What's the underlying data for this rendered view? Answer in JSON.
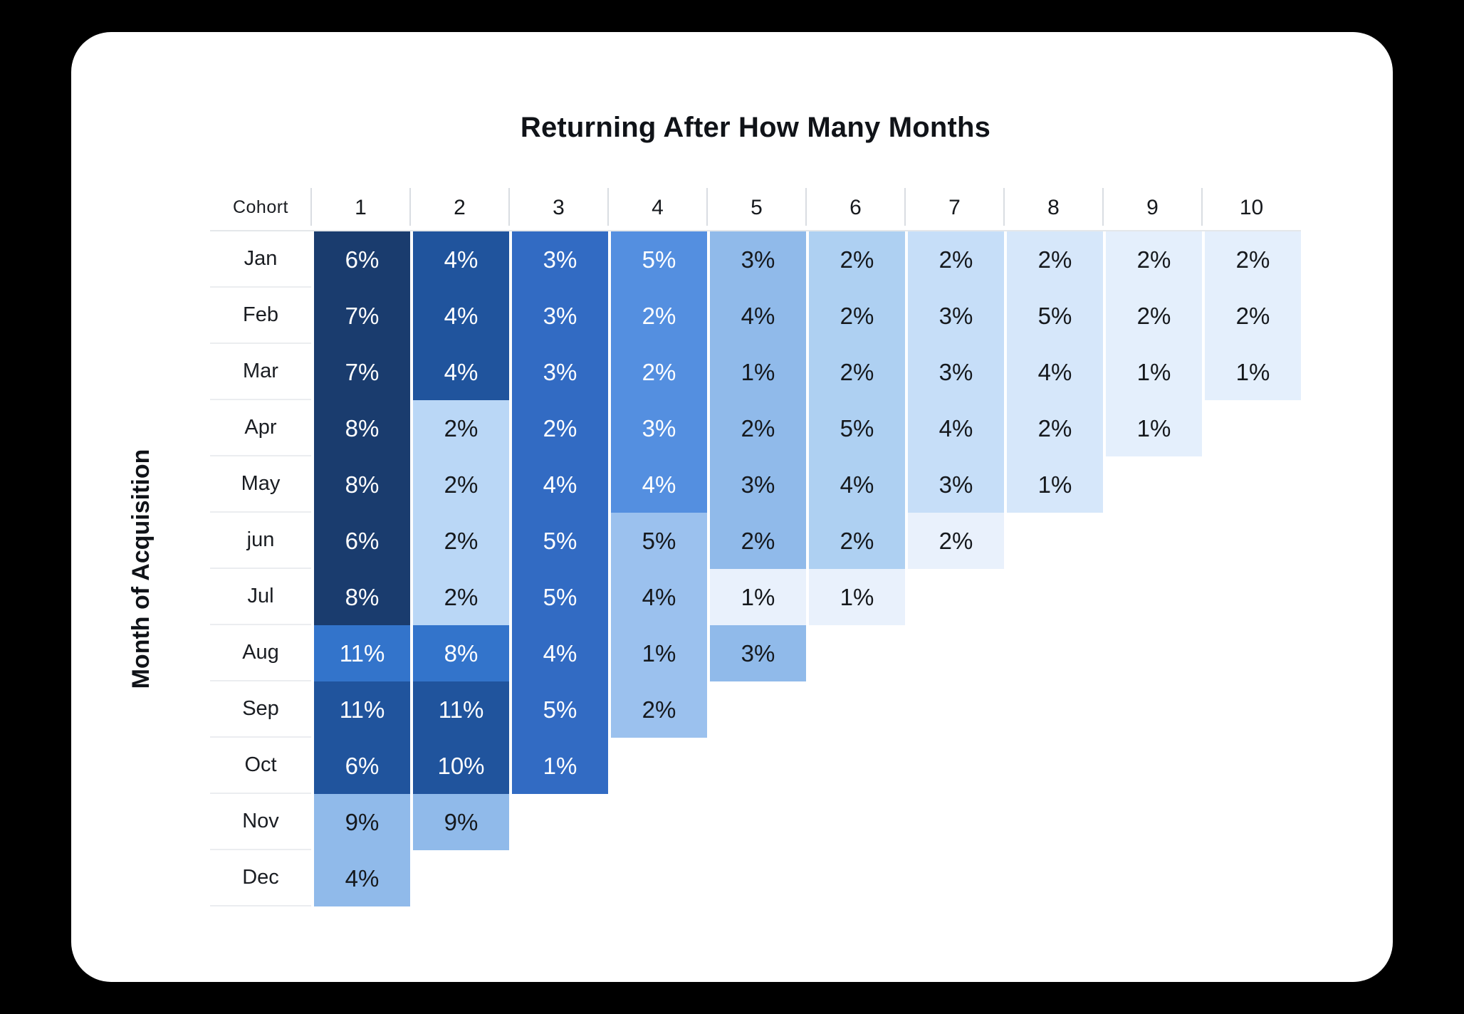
{
  "page": {
    "background": "#000000",
    "card_background": "#ffffff"
  },
  "chart_data": {
    "type": "heatmap",
    "title": "Returning After How Many Months",
    "ylabel": "Month of Acquisition",
    "corner_label": "Cohort",
    "unit": "%",
    "columns": [
      "1",
      "2",
      "3",
      "4",
      "5",
      "6",
      "7",
      "8",
      "9",
      "10"
    ],
    "rows": [
      "Jan",
      "Feb",
      "Mar",
      "Apr",
      "May",
      "jun",
      "Jul",
      "Aug",
      "Sep",
      "Oct",
      "Nov",
      "Dec"
    ],
    "values_pct": [
      [
        6,
        4,
        3,
        5,
        3,
        2,
        2,
        2,
        2,
        2
      ],
      [
        7,
        4,
        3,
        2,
        4,
        2,
        3,
        5,
        2,
        2
      ],
      [
        7,
        4,
        3,
        2,
        1,
        2,
        3,
        4,
        1,
        1
      ],
      [
        8,
        2,
        2,
        3,
        2,
        5,
        4,
        2,
        1
      ],
      [
        8,
        2,
        4,
        4,
        3,
        4,
        3,
        1
      ],
      [
        6,
        2,
        5,
        5,
        2,
        2,
        2
      ],
      [
        8,
        2,
        5,
        4,
        1,
        1
      ],
      [
        11,
        8,
        4,
        1,
        3
      ],
      [
        11,
        11,
        5,
        2
      ],
      [
        6,
        10,
        1
      ],
      [
        9,
        9
      ],
      [
        4
      ]
    ],
    "cell_styles": [
      [
        "navy",
        "dark",
        "med",
        "med4",
        "l5",
        "l6",
        "l7",
        "l8",
        "l9",
        "l9"
      ],
      [
        "navy",
        "dark",
        "med",
        "med4",
        "l5",
        "l6",
        "l7",
        "l8",
        "l9",
        "l9"
      ],
      [
        "navy",
        "dark",
        "med",
        "med4",
        "l5",
        "l6",
        "l7",
        "l8",
        "l9",
        "l9"
      ],
      [
        "navy",
        "l2",
        "med",
        "med4",
        "l5",
        "l6",
        "l7",
        "l8",
        "l9"
      ],
      [
        "navy",
        "l2",
        "med",
        "med4",
        "l5",
        "l6",
        "l7",
        "l8"
      ],
      [
        "navy",
        "l2",
        "med",
        "l4",
        "l5",
        "l6",
        "lx"
      ],
      [
        "navy",
        "l2",
        "med",
        "l4",
        "lx",
        "lx"
      ],
      [
        "aug",
        "aug",
        "med",
        "l4",
        "l5"
      ],
      [
        "dark",
        "dark",
        "med",
        "l4"
      ],
      [
        "dark",
        "dark",
        "med"
      ],
      [
        "l5",
        "l5"
      ],
      [
        "l5"
      ]
    ],
    "palette": {
      "navy": {
        "bg": "#1A3C6E",
        "text": "#FFFFFF"
      },
      "dark": {
        "bg": "#20549D",
        "text": "#FFFFFF"
      },
      "med": {
        "bg": "#326BC3",
        "text": "#FFFFFF"
      },
      "med4": {
        "bg": "#548FE0",
        "text": "#FFFFFF"
      },
      "aug": {
        "bg": "#3374CB",
        "text": "#FFFFFF"
      },
      "l2": {
        "bg": "#BAD7F6",
        "text": "#15181C"
      },
      "l4": {
        "bg": "#9BC1EE",
        "text": "#15181C"
      },
      "l5": {
        "bg": "#90BAEA",
        "text": "#15181C"
      },
      "l6": {
        "bg": "#AED0F2",
        "text": "#15181C"
      },
      "l7": {
        "bg": "#C6DEF8",
        "text": "#15181C"
      },
      "l8": {
        "bg": "#D6E7FA",
        "text": "#15181C"
      },
      "l9": {
        "bg": "#E4EFFC",
        "text": "#15181C"
      },
      "lx": {
        "bg": "#E9F1FC",
        "text": "#15181C"
      }
    },
    "textured_light_tokens": [
      "l9",
      "lx"
    ],
    "textured_blue_tokens": [
      "aug"
    ]
  }
}
